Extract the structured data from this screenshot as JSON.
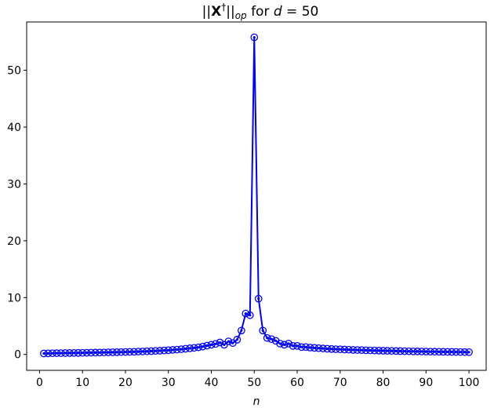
{
  "chart_data": {
    "type": "line",
    "title": {
      "prefix": "||",
      "symbol": "X",
      "dagger": "†",
      "norm_close": "||",
      "subscript": "op",
      "mid": " for ",
      "var": "d",
      "eq": " = 50"
    },
    "xlabel": "n",
    "ylabel": "",
    "xlim": [
      -3,
      104
    ],
    "ylim": [
      -2.8,
      58.5
    ],
    "xticks": [
      0,
      10,
      20,
      30,
      40,
      50,
      60,
      70,
      80,
      90,
      100
    ],
    "yticks": [
      0,
      10,
      20,
      30,
      40,
      50
    ],
    "grid": false,
    "series": [
      {
        "color": "#0000ff",
        "marker": "circle-hollow-with-dot",
        "x": [
          1,
          2,
          3,
          4,
          5,
          6,
          7,
          8,
          9,
          10,
          11,
          12,
          13,
          14,
          15,
          16,
          17,
          18,
          19,
          20,
          21,
          22,
          23,
          24,
          25,
          26,
          27,
          28,
          29,
          30,
          31,
          32,
          33,
          34,
          35,
          36,
          37,
          38,
          39,
          40,
          41,
          42,
          43,
          44,
          45,
          46,
          47,
          48,
          49,
          50,
          51,
          52,
          53,
          54,
          55,
          56,
          57,
          58,
          59,
          60,
          61,
          62,
          63,
          64,
          65,
          66,
          67,
          68,
          69,
          70,
          71,
          72,
          73,
          74,
          75,
          76,
          77,
          78,
          79,
          80,
          81,
          82,
          83,
          84,
          85,
          86,
          87,
          88,
          89,
          90,
          91,
          92,
          93,
          94,
          95,
          96,
          97,
          98,
          99,
          100
        ],
        "y": [
          0.17,
          0.19,
          0.21,
          0.22,
          0.23,
          0.24,
          0.25,
          0.26,
          0.27,
          0.28,
          0.29,
          0.31,
          0.32,
          0.33,
          0.35,
          0.36,
          0.38,
          0.39,
          0.41,
          0.43,
          0.45,
          0.47,
          0.5,
          0.52,
          0.55,
          0.58,
          0.62,
          0.65,
          0.7,
          0.74,
          0.8,
          0.85,
          0.92,
          1.0,
          1.08,
          1.16,
          1.25,
          1.38,
          1.55,
          1.7,
          1.85,
          2.1,
          1.7,
          2.3,
          2.0,
          2.6,
          4.2,
          7.2,
          6.9,
          55.8,
          9.8,
          4.2,
          2.9,
          2.7,
          2.4,
          1.9,
          1.7,
          1.9,
          1.5,
          1.5,
          1.3,
          1.3,
          1.2,
          1.15,
          1.1,
          1.05,
          1.0,
          0.96,
          0.92,
          0.9,
          0.86,
          0.83,
          0.8,
          0.78,
          0.76,
          0.73,
          0.71,
          0.69,
          0.67,
          0.65,
          0.63,
          0.62,
          0.6,
          0.58,
          0.57,
          0.55,
          0.54,
          0.53,
          0.52,
          0.5,
          0.49,
          0.48,
          0.47,
          0.46,
          0.45,
          0.44,
          0.43,
          0.42,
          0.41,
          0.4
        ]
      }
    ]
  }
}
